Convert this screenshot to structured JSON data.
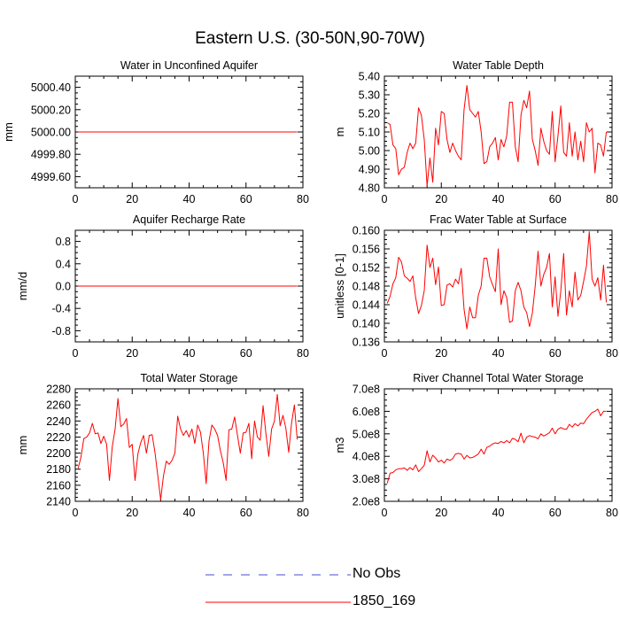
{
  "page_title": "Eastern U.S. (30-50N,90-70W)",
  "legend": {
    "items": [
      {
        "label": "No Obs",
        "color": "#4b4bd6",
        "style": "dashed"
      },
      {
        "label": "1850_169",
        "color": "#ff0000",
        "style": "solid"
      }
    ]
  },
  "chart_data": [
    {
      "type": "line",
      "title": "Water in Unconfined Aquifer",
      "ylabel": "mm",
      "xlim": [
        0,
        80
      ],
      "ylim": [
        4999.5,
        5000.5
      ],
      "xticks": [
        0,
        20,
        40,
        60,
        80
      ],
      "xtick_labels": [
        "0",
        "20",
        "40",
        "60",
        "80"
      ],
      "yticks": [
        4999.6,
        4999.8,
        5000.0,
        5000.2,
        5000.4
      ],
      "ytick_labels": [
        "4999.60",
        "4999.80",
        "5000.00",
        "5000.20",
        "5000.40"
      ],
      "yminor": [
        4999.55,
        4999.65,
        4999.7,
        4999.75,
        4999.85,
        4999.9,
        4999.95,
        5000.05,
        5000.1,
        5000.15,
        5000.25,
        5000.3,
        5000.35,
        5000.45
      ],
      "series": [
        {
          "name": "1850_169",
          "color": "#ff0000",
          "x": [
            1,
            78
          ],
          "y": [
            5000.0,
            5000.0
          ]
        }
      ]
    },
    {
      "type": "line",
      "title": "Water Table Depth",
      "ylabel": "m",
      "xlim": [
        0,
        80
      ],
      "ylim": [
        4.8,
        5.4
      ],
      "xticks": [
        0,
        20,
        40,
        60,
        80
      ],
      "xtick_labels": [
        "0",
        "20",
        "40",
        "60",
        "80"
      ],
      "yticks": [
        4.8,
        4.9,
        5.0,
        5.1,
        5.2,
        5.3,
        5.4
      ],
      "ytick_labels": [
        "4.80",
        "4.90",
        "5.00",
        "5.10",
        "5.20",
        "5.30",
        "5.40"
      ],
      "yminor": [
        4.825,
        4.85,
        4.875,
        4.925,
        4.95,
        4.975,
        5.025,
        5.05,
        5.075,
        5.125,
        5.15,
        5.175,
        5.225,
        5.25,
        5.275,
        5.325,
        5.35,
        5.375
      ],
      "series": [
        {
          "name": "1850_169",
          "color": "#ff0000",
          "x": [
            1,
            2,
            3,
            4,
            5,
            6,
            7,
            8,
            9,
            10,
            11,
            12,
            13,
            14,
            15,
            16,
            17,
            18,
            19,
            20,
            21,
            22,
            23,
            24,
            25,
            26,
            27,
            28,
            29,
            30,
            31,
            32,
            33,
            34,
            35,
            36,
            37,
            38,
            39,
            40,
            41,
            42,
            43,
            44,
            45,
            46,
            47,
            48,
            49,
            50,
            51,
            52,
            53,
            54,
            55,
            56,
            57,
            58,
            59,
            60,
            61,
            62,
            63,
            64,
            65,
            66,
            67,
            68,
            69,
            70,
            71,
            72,
            73,
            74,
            75,
            76,
            77,
            78
          ],
          "y": [
            5.15,
            5.14,
            5.03,
            5.01,
            4.87,
            4.9,
            4.91,
            4.99,
            5.04,
            5.01,
            5.04,
            5.23,
            5.19,
            5.06,
            4.81,
            4.96,
            4.83,
            5.12,
            5.03,
            5.21,
            5.2,
            5.06,
            4.99,
            5.04,
            5.0,
            4.97,
            4.95,
            5.22,
            5.35,
            5.22,
            5.2,
            5.18,
            5.21,
            5.1,
            4.93,
            4.94,
            5.02,
            5.04,
            5.07,
            4.95,
            5.06,
            5.02,
            5.08,
            5.26,
            5.26,
            5.02,
            4.94,
            5.19,
            5.27,
            5.23,
            5.32,
            5.06,
            5.0,
            4.92,
            5.12,
            5.05,
            5.0,
            4.98,
            5.21,
            4.94,
            5.08,
            5.24,
            4.99,
            4.97,
            5.15,
            4.97,
            5.1,
            4.95,
            5.05,
            4.94,
            5.15,
            5.1,
            5.12,
            4.88,
            5.04,
            5.03,
            4.97,
            5.1
          ]
        }
      ]
    },
    {
      "type": "line",
      "title": "Aquifer Recharge Rate",
      "ylabel": "mm/d",
      "xlim": [
        0,
        80
      ],
      "ylim": [
        -1.0,
        1.0
      ],
      "xticks": [
        0,
        20,
        40,
        60,
        80
      ],
      "xtick_labels": [
        "0",
        "20",
        "40",
        "60",
        "80"
      ],
      "yticks": [
        -0.8,
        -0.4,
        0.0,
        0.4,
        0.8
      ],
      "ytick_labels": [
        "-0.8",
        "-0.4",
        "0.0",
        "0.4",
        "0.8"
      ],
      "yminor": [
        -0.9,
        -0.7,
        -0.6,
        -0.5,
        -0.3,
        -0.2,
        -0.1,
        0.1,
        0.2,
        0.3,
        0.5,
        0.6,
        0.7,
        0.9
      ],
      "series": [
        {
          "name": "1850_169",
          "color": "#ff0000",
          "x": [
            1,
            78
          ],
          "y": [
            0.0,
            0.0
          ]
        }
      ]
    },
    {
      "type": "line",
      "title": "Frac Water Table at Surface",
      "ylabel": "unitless [0-1]",
      "xlim": [
        0,
        80
      ],
      "ylim": [
        0.136,
        0.16
      ],
      "xticks": [
        0,
        20,
        40,
        60,
        80
      ],
      "xtick_labels": [
        "0",
        "20",
        "40",
        "60",
        "80"
      ],
      "yticks": [
        0.136,
        0.14,
        0.144,
        0.148,
        0.152,
        0.156,
        0.16
      ],
      "ytick_labels": [
        "0.136",
        "0.140",
        "0.144",
        "0.148",
        "0.152",
        "0.156",
        "0.160"
      ],
      "yminor": [
        0.137,
        0.138,
        0.139,
        0.141,
        0.142,
        0.143,
        0.145,
        0.146,
        0.147,
        0.149,
        0.15,
        0.151,
        0.153,
        0.154,
        0.155,
        0.157,
        0.158,
        0.159
      ],
      "series": [
        {
          "name": "1850_169",
          "color": "#ff0000",
          "x": [
            1,
            2,
            3,
            4,
            5,
            6,
            7,
            8,
            9,
            10,
            11,
            12,
            13,
            14,
            15,
            16,
            17,
            18,
            19,
            20,
            21,
            22,
            23,
            24,
            25,
            26,
            27,
            28,
            29,
            30,
            31,
            32,
            33,
            34,
            35,
            36,
            37,
            38,
            39,
            40,
            41,
            42,
            43,
            44,
            45,
            46,
            47,
            48,
            49,
            50,
            51,
            52,
            53,
            54,
            55,
            56,
            57,
            58,
            59,
            60,
            61,
            62,
            63,
            64,
            65,
            66,
            67,
            68,
            69,
            70,
            71,
            72,
            73,
            74,
            75,
            76,
            77,
            78
          ],
          "y": [
            0.1443,
            0.1458,
            0.1485,
            0.1498,
            0.1542,
            0.1532,
            0.1502,
            0.1497,
            0.149,
            0.1502,
            0.1455,
            0.1421,
            0.1438,
            0.147,
            0.1568,
            0.152,
            0.154,
            0.1483,
            0.1521,
            0.1438,
            0.144,
            0.1482,
            0.1485,
            0.1478,
            0.1495,
            0.1485,
            0.1518,
            0.143,
            0.1388,
            0.1435,
            0.1412,
            0.1412,
            0.146,
            0.148,
            0.154,
            0.154,
            0.15,
            0.1483,
            0.1468,
            0.156,
            0.144,
            0.147,
            0.1455,
            0.1402,
            0.1405,
            0.147,
            0.1488,
            0.147,
            0.1435,
            0.1423,
            0.1393,
            0.1422,
            0.148,
            0.1555,
            0.148,
            0.1505,
            0.152,
            0.155,
            0.1435,
            0.15,
            0.1415,
            0.147,
            0.155,
            0.1418,
            0.147,
            0.1435,
            0.151,
            0.145,
            0.146,
            0.149,
            0.1523,
            0.1597,
            0.1495,
            0.148,
            0.1498,
            0.145,
            0.1525,
            0.1445
          ]
        }
      ]
    },
    {
      "type": "line",
      "title": "Total Water Storage",
      "ylabel": "mm",
      "xlim": [
        0,
        80
      ],
      "ylim": [
        2140,
        2280
      ],
      "xticks": [
        0,
        20,
        40,
        60,
        80
      ],
      "xtick_labels": [
        "0",
        "20",
        "40",
        "60",
        "80"
      ],
      "yticks": [
        2140,
        2160,
        2180,
        2200,
        2220,
        2240,
        2260,
        2280
      ],
      "ytick_labels": [
        "2140",
        "2160",
        "2180",
        "2200",
        "2220",
        "2240",
        "2260",
        "2280"
      ],
      "yminor": [
        2145,
        2150,
        2155,
        2165,
        2170,
        2175,
        2185,
        2190,
        2195,
        2205,
        2210,
        2215,
        2225,
        2230,
        2235,
        2245,
        2250,
        2255,
        2265,
        2270,
        2275
      ],
      "series": [
        {
          "name": "1850_169",
          "color": "#ff0000",
          "x": [
            1,
            2,
            3,
            4,
            5,
            6,
            7,
            8,
            9,
            10,
            11,
            12,
            13,
            14,
            15,
            16,
            17,
            18,
            19,
            20,
            21,
            22,
            23,
            24,
            25,
            26,
            27,
            28,
            29,
            30,
            31,
            32,
            33,
            34,
            35,
            36,
            37,
            38,
            39,
            40,
            41,
            42,
            43,
            44,
            45,
            46,
            47,
            48,
            49,
            50,
            51,
            52,
            53,
            54,
            55,
            56,
            57,
            58,
            59,
            60,
            61,
            62,
            63,
            64,
            65,
            66,
            67,
            68,
            69,
            70,
            71,
            72,
            73,
            74,
            75,
            76,
            77,
            78
          ],
          "y": [
            2181,
            2195,
            2218,
            2220,
            2225,
            2237,
            2224,
            2225,
            2212,
            2221,
            2211,
            2166,
            2208,
            2230,
            2268,
            2233,
            2236,
            2243,
            2207,
            2211,
            2166,
            2199,
            2213,
            2222,
            2200,
            2222,
            2223,
            2201,
            2172,
            2142,
            2172,
            2190,
            2186,
            2191,
            2200,
            2246,
            2230,
            2222,
            2228,
            2220,
            2230,
            2212,
            2235,
            2226,
            2200,
            2162,
            2215,
            2235,
            2230,
            2222,
            2203,
            2188,
            2166,
            2229,
            2230,
            2245,
            2222,
            2200,
            2225,
            2226,
            2237,
            2193,
            2240,
            2220,
            2216,
            2259,
            2224,
            2196,
            2230,
            2240,
            2273,
            2234,
            2247,
            2231,
            2201,
            2237,
            2260,
            2217
          ]
        }
      ]
    },
    {
      "type": "line",
      "title": "River Channel Total Water Storage",
      "ylabel": "m3",
      "xlim": [
        0,
        80
      ],
      "ylim": [
        200000000,
        700000000
      ],
      "xticks": [
        0,
        20,
        40,
        60,
        80
      ],
      "xtick_labels": [
        "0",
        "20",
        "40",
        "60",
        "80"
      ],
      "yticks": [
        200000000,
        300000000,
        400000000,
        500000000,
        600000000,
        700000000
      ],
      "ytick_labels": [
        "2.0e8",
        "3.0e8",
        "4.0e8",
        "5.0e8",
        "6.0e8",
        "7.0e8"
      ],
      "yminor": [
        225000000,
        250000000,
        275000000,
        325000000,
        350000000,
        375000000,
        425000000,
        450000000,
        475000000,
        525000000,
        550000000,
        575000000,
        625000000,
        650000000,
        675000000
      ],
      "series": [
        {
          "name": "1850_169",
          "color": "#ff0000",
          "x": [
            1,
            2,
            3,
            4,
            5,
            6,
            7,
            8,
            9,
            10,
            11,
            12,
            13,
            14,
            15,
            16,
            17,
            18,
            19,
            20,
            21,
            22,
            23,
            24,
            25,
            26,
            27,
            28,
            29,
            30,
            31,
            32,
            33,
            34,
            35,
            36,
            37,
            38,
            39,
            40,
            41,
            42,
            43,
            44,
            45,
            46,
            47,
            48,
            49,
            50,
            51,
            52,
            53,
            54,
            55,
            56,
            57,
            58,
            59,
            60,
            61,
            62,
            63,
            64,
            65,
            66,
            67,
            68,
            69,
            70,
            71,
            72,
            73,
            74,
            75,
            76,
            77,
            78
          ],
          "y": [
            280000000,
            325000000,
            328000000,
            340000000,
            345000000,
            345000000,
            348000000,
            338000000,
            350000000,
            340000000,
            362000000,
            332000000,
            345000000,
            360000000,
            425000000,
            375000000,
            405000000,
            392000000,
            375000000,
            383000000,
            370000000,
            388000000,
            382000000,
            390000000,
            410000000,
            413000000,
            410000000,
            388000000,
            404000000,
            393000000,
            395000000,
            402000000,
            410000000,
            432000000,
            410000000,
            440000000,
            445000000,
            455000000,
            460000000,
            457000000,
            466000000,
            460000000,
            470000000,
            460000000,
            480000000,
            475000000,
            465000000,
            503000000,
            460000000,
            485000000,
            492000000,
            488000000,
            485000000,
            478000000,
            500000000,
            490000000,
            497000000,
            505000000,
            525000000,
            500000000,
            520000000,
            528000000,
            522000000,
            520000000,
            542000000,
            530000000,
            545000000,
            535000000,
            548000000,
            545000000,
            565000000,
            580000000,
            595000000,
            600000000,
            610000000,
            580000000,
            600000000,
            600000000
          ]
        }
      ]
    }
  ]
}
